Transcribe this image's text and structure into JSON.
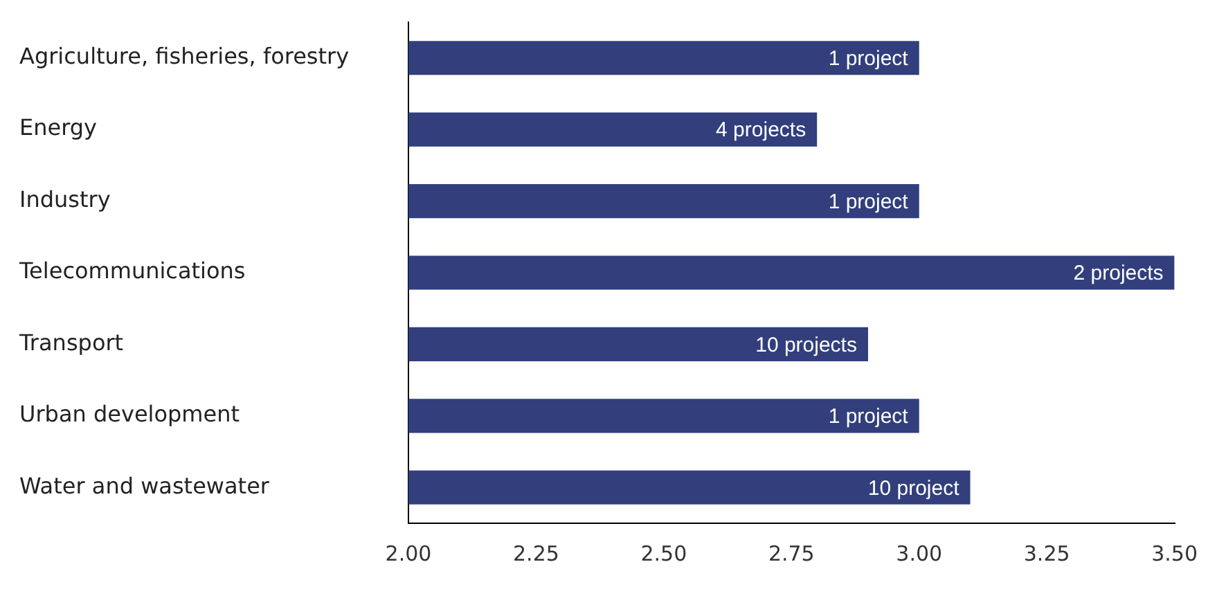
{
  "chart_data": {
    "type": "bar",
    "orientation": "horizontal",
    "categories": [
      "Agriculture, fisheries, forestry",
      "Energy",
      "Industry",
      "Telecommunications",
      "Transport",
      "Urban development",
      "Water and wastewater"
    ],
    "values": [
      3.0,
      2.8,
      3.0,
      3.5,
      2.9,
      3.0,
      3.1
    ],
    "annotations": [
      {
        "text": "1 project",
        "x": 3.0,
        "y": "Agriculture, fisheries, forestry"
      },
      {
        "text": "4 projects",
        "x": 2.8,
        "y": "Energy"
      },
      {
        "text": "1 project",
        "x": 3.0,
        "y": "Industry"
      },
      {
        "text": "2 projects",
        "x": 3.5,
        "y": "Telecommunications"
      },
      {
        "text": "10 projects",
        "x": 2.9,
        "y": "Transport"
      },
      {
        "text": "1 project",
        "x": 3.0,
        "y": "Urban development"
      },
      {
        "text": "10 project",
        "x": 3.1,
        "y": "Water and wastewater"
      }
    ],
    "color": "#323f7c",
    "xlim": [
      2.0,
      3.5
    ],
    "xticks": [
      {
        "value": 2,
        "label": "2.00"
      },
      {
        "value": 2.25,
        "label": "2.25"
      },
      {
        "value": 2.5,
        "label": "2.50"
      },
      {
        "value": 2.75,
        "label": "2.75"
      },
      {
        "value": 3,
        "label": "3.00"
      },
      {
        "value": 3.25,
        "label": "3.25"
      },
      {
        "value": 3.5,
        "label": "3.50"
      }
    ],
    "grid": false,
    "legend": false
  }
}
